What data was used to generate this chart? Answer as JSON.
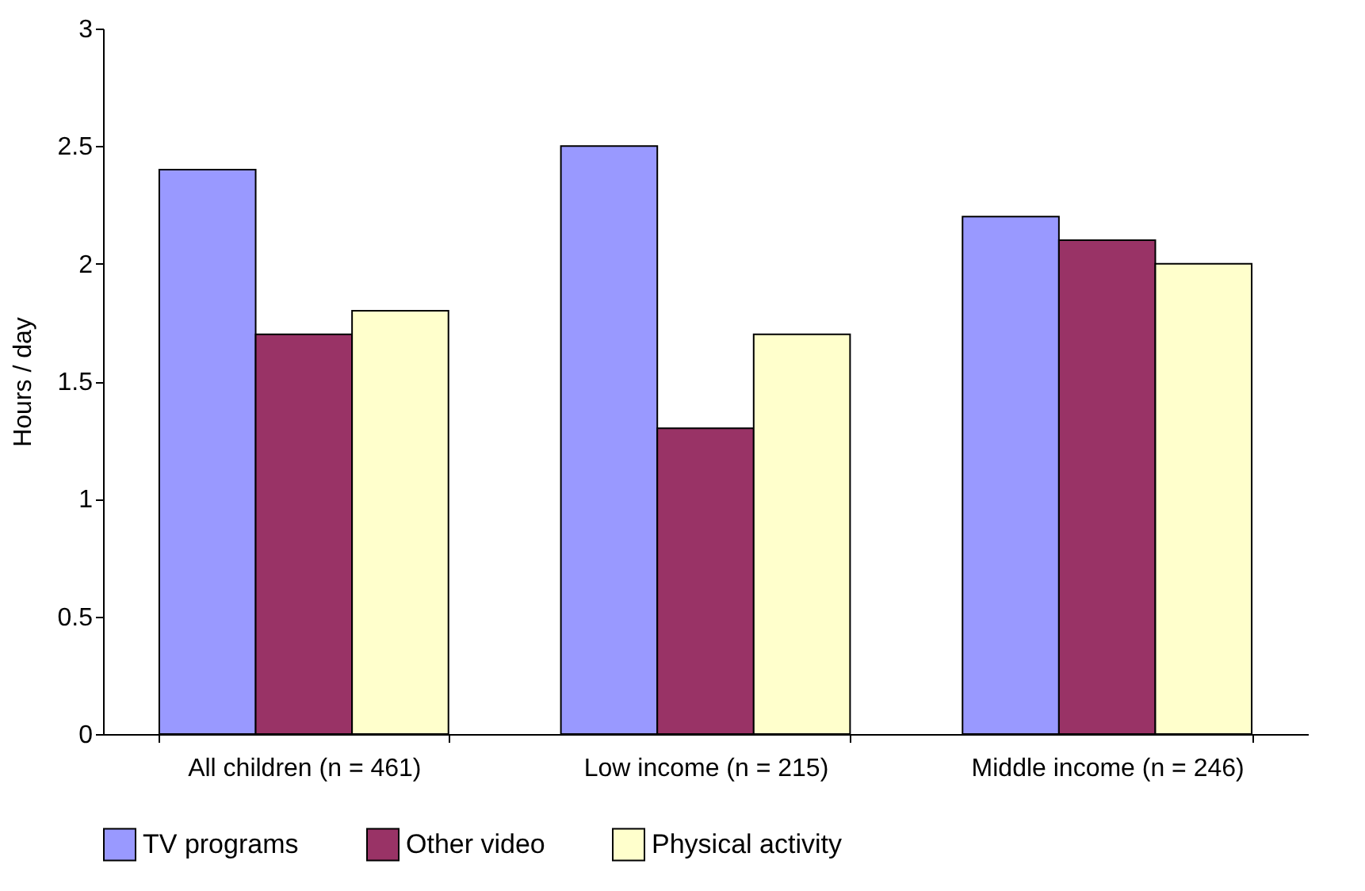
{
  "chart_data": {
    "type": "bar",
    "ylabel": "Hours / day",
    "categories": [
      "All children (n = 461)",
      "Low income (n = 215)",
      "Middle income (n = 246)"
    ],
    "series": [
      {
        "name": "TV programs",
        "color": "#9999ff",
        "values": [
          2.4,
          2.5,
          2.2
        ]
      },
      {
        "name": "Other video",
        "color": "#993366",
        "values": [
          1.7,
          1.3,
          2.1
        ]
      },
      {
        "name": "Physical activity",
        "color": "#ffffcc",
        "values": [
          1.8,
          1.7,
          2.0
        ]
      }
    ],
    "ylim": [
      0,
      3
    ],
    "yticks": [
      0,
      0.5,
      1,
      1.5,
      2,
      2.5,
      3
    ],
    "grid": false,
    "legend": "bottom"
  }
}
